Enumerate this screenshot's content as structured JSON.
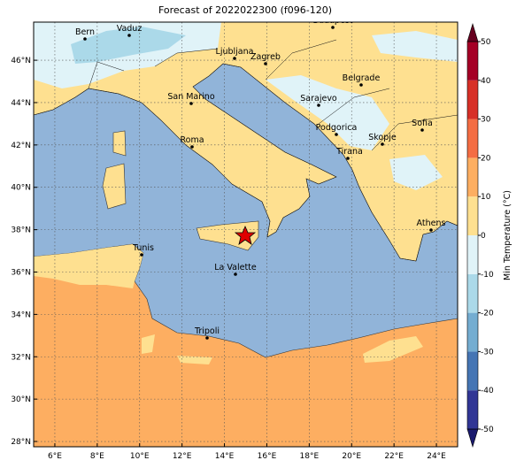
{
  "title": "Forecast of 2022022300 (f096-120)",
  "map": {
    "xlim": [
      5,
      25
    ],
    "ylim": [
      27.75,
      47.8
    ],
    "xticks": [
      {
        "value": 6,
        "label": "6°E"
      },
      {
        "value": 8,
        "label": "8°E"
      },
      {
        "value": 10,
        "label": "10°E"
      },
      {
        "value": 12,
        "label": "12°E"
      },
      {
        "value": 14,
        "label": "14°E"
      },
      {
        "value": 16,
        "label": "16°E"
      },
      {
        "value": 18,
        "label": "18°E"
      },
      {
        "value": 20,
        "label": "20°E"
      },
      {
        "value": 22,
        "label": "22°E"
      },
      {
        "value": 24,
        "label": "24°E"
      }
    ],
    "yticks": [
      {
        "value": 28,
        "label": "28°N"
      },
      {
        "value": 30,
        "label": "30°N"
      },
      {
        "value": 32,
        "label": "32°N"
      },
      {
        "value": 34,
        "label": "34°N"
      },
      {
        "value": 36,
        "label": "36°N"
      },
      {
        "value": 38,
        "label": "38°N"
      },
      {
        "value": 40,
        "label": "40°N"
      },
      {
        "value": 42,
        "label": "42°N"
      },
      {
        "value": 44,
        "label": "44°N"
      },
      {
        "value": 46,
        "label": "46°N"
      }
    ],
    "grid": true,
    "cities": [
      "Bern",
      "Vaduz",
      "Budapest",
      "Ljubljana",
      "Zagreb",
      "Belgrade",
      "San Marino",
      "Sarajevo",
      "Sofia",
      "Podgorica",
      "Skopje",
      "Roma",
      "Tirana",
      "Athens",
      "Tunis",
      "La Valette",
      "Tripoli"
    ]
  },
  "colorbar": {
    "label": "Min Temperature (°C)",
    "lim": [
      -50,
      50
    ],
    "ticks": [
      -50,
      -40,
      -30,
      -20,
      -10,
      0,
      10,
      20,
      30,
      40,
      50
    ],
    "colors": [
      "#313695",
      "#4575b4",
      "#74add1",
      "#abd9e9",
      "#e0f3f8",
      "#fee090",
      "#fdae61",
      "#f46d43",
      "#d73027",
      "#a50026"
    ]
  }
}
